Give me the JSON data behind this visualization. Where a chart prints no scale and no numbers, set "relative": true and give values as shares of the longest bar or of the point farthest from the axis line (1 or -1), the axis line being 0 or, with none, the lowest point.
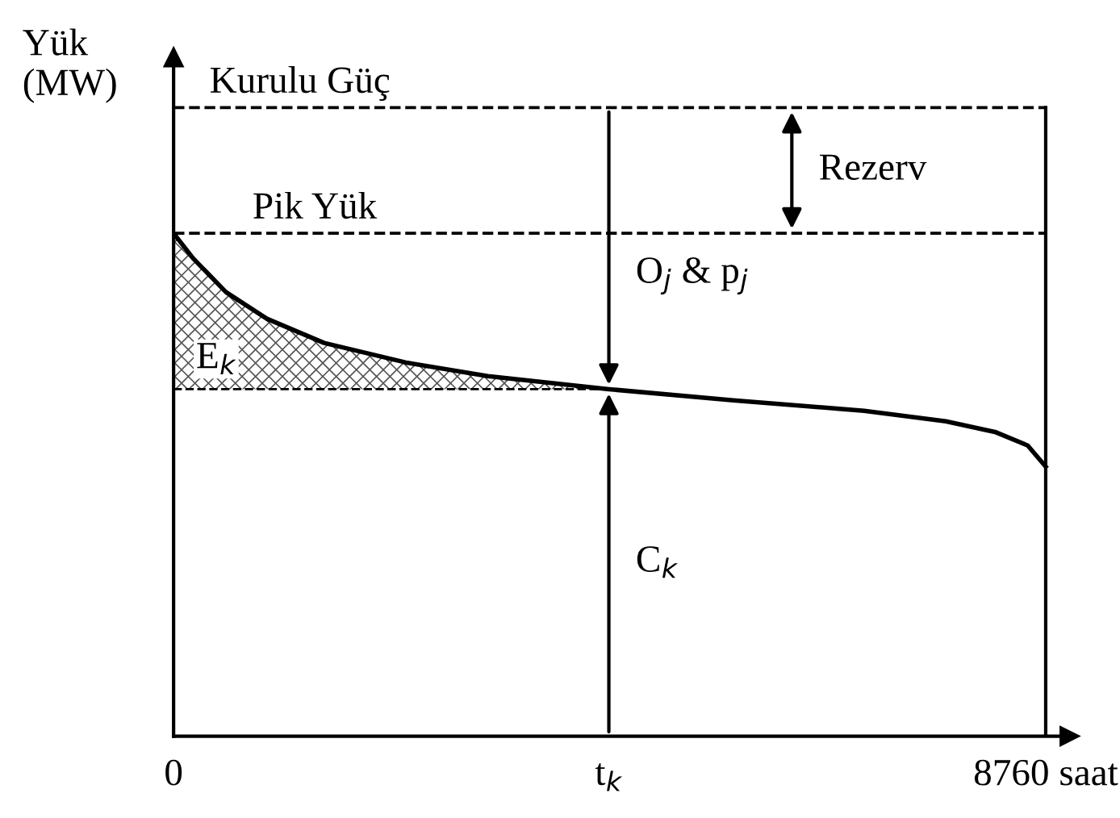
{
  "chart_data": {
    "type": "line",
    "relative": true,
    "ylabel": "Yük\n(MW)",
    "x": [
      0,
      197,
      526,
      937,
      1512,
      2334,
      3156,
      4372,
      5621,
      6936,
      7757,
      8250,
      8579,
      8760
    ],
    "series": [
      {
        "color": "#000000",
        "values": [
          1.0,
          0.95,
          0.883,
          0.83,
          0.782,
          0.743,
          0.716,
          0.69,
          0.668,
          0.647,
          0.626,
          0.605,
          0.578,
          0.536
        ]
      }
    ],
    "xlim": [
      0,
      9000
    ],
    "xticks": [
      0,
      {
        "value": 4372,
        "label": "t$_{k}$"
      },
      {
        "value": 8760,
        "label": "8760 saat"
      }
    ],
    "ref_lines": [
      {
        "axis": "y",
        "value": 1.25,
        "label": "Kurulu Güç",
        "line_style": "dashed",
        "color": "#000000"
      },
      {
        "axis": "y",
        "value": 1.0,
        "label": "Pik Yük",
        "line_style": "dashed",
        "color": "#000000"
      },
      {
        "axis": "x",
        "value": 8760,
        "color": "#000000",
        "line_style": "solid"
      },
      {
        "axis": "y",
        "value": 0.69,
        "color": "#000000",
        "line_style": "dashed"
      }
    ],
    "annotations": [
      "Rezerv",
      "O$_{j}$ & p$_{j}$",
      "E$_{k}$",
      "C$_{k}$"
    ],
    "grid": false,
    "marker": "none",
    "line_style": "solid"
  }
}
